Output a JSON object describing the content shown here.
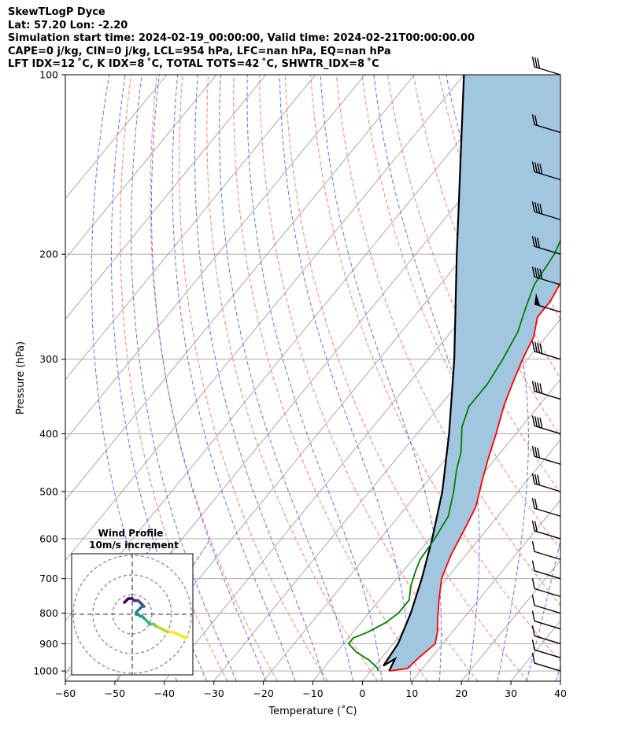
{
  "header": {
    "line1": "SkewTLogP Dyce",
    "line2": "Lat: 57.20   Lon: -2.20",
    "line3": "Simulation start time: 2024-02-19_00:00:00, Valid time: 2024-02-21T00:00:00.00",
    "line4": "CAPE=0 j/kg, CIN=0 j/kg, LCL=954 hPa, LFC=nan hPa, EQ=nan hPa",
    "line5": "LFT IDX=12 ˚C, K IDX=8 ˚C, TOTAL TOTS=42 ˚C, SHWTR_IDX=8 ˚C"
  },
  "colors": {
    "temperature": "#ff0000",
    "dewpoint": "#008000",
    "parcel": "#000000",
    "fill": "#a2c6e0",
    "dry_adiabat": "#ff6b6b",
    "moist_adiabat": "#5a5aff",
    "mixing_ratio": "#9b59d6",
    "isotherm": "#a0a0a0"
  },
  "chart_data": [
    {
      "type": "line",
      "title": "",
      "xlabel": "Temperature (˚C)",
      "ylabel": "Pressure (hPa)",
      "xlim": [
        -60,
        40
      ],
      "ylim": [
        1040,
        100
      ],
      "y_scale": "log",
      "x_ticks": [
        "−60",
        "−50",
        "−40",
        "−30",
        "−20",
        "−10",
        "0",
        "10",
        "20",
        "30",
        "40"
      ],
      "y_ticks": [
        1000,
        900,
        800,
        700,
        600,
        500,
        400,
        300,
        200,
        100
      ],
      "grid": true,
      "series": [
        {
          "key": "temperature",
          "points": [
            [
              3.7,
              1000
            ],
            [
              7,
              990
            ],
            [
              7.5,
              950
            ],
            [
              8.5,
              900
            ],
            [
              7,
              860
            ],
            [
              5,
              820
            ],
            [
              2,
              760
            ],
            [
              -1,
              700
            ],
            [
              -3,
              640
            ],
            [
              -4.5,
              580
            ],
            [
              -6,
              530
            ],
            [
              -9,
              480
            ],
            [
              -11.5,
              440
            ],
            [
              -14,
              400
            ],
            [
              -17,
              360
            ],
            [
              -19,
              330
            ],
            [
              -21,
              300
            ],
            [
              -22.5,
              275
            ],
            [
              -25,
              255
            ],
            [
              -25,
              240
            ],
            [
              -26.5,
              215
            ],
            [
              -28.5,
              200
            ],
            [
              -31.5,
              185
            ],
            [
              -33,
              170
            ],
            [
              -36,
              155
            ],
            [
              -38.5,
              140
            ],
            [
              -41,
              125
            ],
            [
              -43,
              115
            ],
            [
              -45,
              100
            ]
          ]
        },
        {
          "key": "dewpoint",
          "points": [
            [
              1.5,
              1000
            ],
            [
              1,
              990
            ],
            [
              -2,
              960
            ],
            [
              -6,
              930
            ],
            [
              -9,
              900
            ],
            [
              -9,
              880
            ],
            [
              -7,
              860
            ],
            [
              -5,
              830
            ],
            [
              -4,
              800
            ],
            [
              -4,
              760
            ],
            [
              -6,
              720
            ],
            [
              -7.5,
              680
            ],
            [
              -8.5,
              650
            ],
            [
              -9,
              600
            ],
            [
              -10,
              550
            ],
            [
              -13,
              500
            ],
            [
              -16,
              460
            ],
            [
              -18,
              430
            ],
            [
              -22,
              390
            ],
            [
              -24,
              360
            ],
            [
              -24,
              330
            ],
            [
              -25,
              300
            ],
            [
              -26.5,
              270
            ],
            [
              -29,
              245
            ],
            [
              -31,
              225
            ],
            [
              -32,
              200
            ],
            [
              -33,
              190
            ],
            [
              -33,
              170
            ],
            [
              -34,
              150
            ],
            [
              -34,
              140
            ],
            [
              -34,
              130
            ],
            [
              -35,
              120
            ],
            [
              -38,
              110
            ],
            [
              -41,
              100
            ]
          ]
        },
        {
          "key": "parcel",
          "points": [
            [
              3.7,
              1000
            ],
            [
              2.9,
              954
            ],
            [
              1.7,
              980
            ],
            [
              1,
              900
            ],
            [
              -1.5,
              800
            ],
            [
              -5,
              700
            ],
            [
              -9.5,
              600
            ],
            [
              -15.3,
              500
            ],
            [
              -23.5,
              400
            ],
            [
              -34.8,
              300
            ],
            [
              -51.7,
              200
            ],
            [
              -80,
              100
            ]
          ]
        }
      ],
      "wind_barbs": [
        {
          "p": 100,
          "flags": 0,
          "full": 3,
          "half": 0
        },
        {
          "p": 125,
          "flags": 0,
          "full": 2,
          "half": 0
        },
        {
          "p": 150,
          "flags": 0,
          "full": 4,
          "half": 0
        },
        {
          "p": 175,
          "flags": 0,
          "full": 4,
          "half": 0
        },
        {
          "p": 200,
          "flags": 0,
          "full": 3,
          "half": 0
        },
        {
          "p": 225,
          "flags": 0,
          "full": 4,
          "half": 0
        },
        {
          "p": 250,
          "flags": 1,
          "full": 0,
          "half": 0
        },
        {
          "p": 300,
          "flags": 0,
          "full": 4,
          "half": 0
        },
        {
          "p": 350,
          "flags": 0,
          "full": 4,
          "half": 0
        },
        {
          "p": 400,
          "flags": 0,
          "full": 4,
          "half": 0
        },
        {
          "p": 450,
          "flags": 0,
          "full": 3,
          "half": 0
        },
        {
          "p": 500,
          "flags": 0,
          "full": 3,
          "half": 0
        },
        {
          "p": 550,
          "flags": 0,
          "full": 2,
          "half": 0
        },
        {
          "p": 600,
          "flags": 0,
          "full": 2,
          "half": 0
        },
        {
          "p": 650,
          "flags": 0,
          "full": 1,
          "half": 0
        },
        {
          "p": 700,
          "flags": 0,
          "full": 1,
          "half": 0
        },
        {
          "p": 750,
          "flags": 0,
          "full": 1,
          "half": 0
        },
        {
          "p": 800,
          "flags": 0,
          "full": 1,
          "half": 0
        },
        {
          "p": 850,
          "flags": 0,
          "full": 1,
          "half": 0
        },
        {
          "p": 900,
          "flags": 0,
          "full": 1,
          "half": 0
        },
        {
          "p": 950,
          "flags": 0,
          "full": 1,
          "half": 0
        },
        {
          "p": 1000,
          "flags": 0,
          "full": 1,
          "half": 0
        }
      ]
    },
    {
      "type": "scatter",
      "title": "Wind Profile",
      "subtitle": "10m/s increment",
      "rings_ms": [
        10,
        20,
        30
      ],
      "hodograph_uv": [
        [
          28,
          -11
        ],
        [
          27,
          -12
        ],
        [
          23,
          -10
        ],
        [
          20,
          -9
        ],
        [
          18,
          -9
        ],
        [
          16,
          -8
        ],
        [
          14,
          -7
        ],
        [
          12,
          -6
        ],
        [
          11,
          -5
        ],
        [
          10,
          -5
        ],
        [
          9,
          -5
        ],
        [
          8,
          -4
        ],
        [
          7,
          -3
        ],
        [
          6,
          -2
        ],
        [
          5,
          -1
        ],
        [
          4,
          -1
        ],
        [
          3,
          0
        ],
        [
          2,
          0
        ],
        [
          2,
          1
        ],
        [
          3,
          2
        ],
        [
          4,
          3
        ],
        [
          5,
          4
        ],
        [
          6,
          4
        ],
        [
          5,
          5
        ],
        [
          4,
          6
        ],
        [
          3,
          7
        ],
        [
          2,
          7
        ],
        [
          1,
          7
        ],
        [
          0,
          8
        ],
        [
          -1,
          8
        ],
        [
          -2,
          8
        ],
        [
          -3,
          7
        ],
        [
          -4,
          6
        ]
      ]
    }
  ]
}
